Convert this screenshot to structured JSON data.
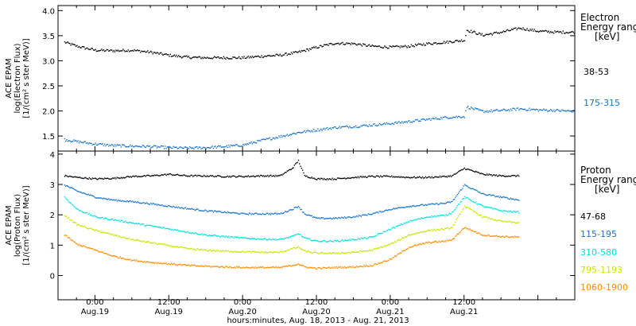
{
  "chart_data": [
    {
      "type": "scatter",
      "panel": "electron",
      "ylabel": [
        "ACE EPAM",
        "log(Electron Flux)",
        "[1/(cm² s ster MeV)]"
      ],
      "ylim": [
        1.2,
        4.1
      ],
      "yticks": [
        1.5,
        2.0,
        2.5,
        3.0,
        3.5,
        4.0
      ],
      "ytick_labels": [
        "1.5",
        "2.0",
        "2.5",
        "3.0",
        "3.5",
        "4.0"
      ],
      "legend_title": [
        "Electron",
        "Energy ranges",
        "[keV]"
      ],
      "series": [
        {
          "name": "38-53",
          "color": "#000000",
          "x": [
            1,
            3,
            6,
            9,
            12,
            15,
            18,
            21,
            24,
            27,
            30,
            33,
            36,
            39,
            42,
            45,
            48,
            51,
            54,
            57,
            60,
            63,
            66,
            66.4,
            69,
            72,
            75,
            78,
            81,
            84
          ],
          "values": [
            3.38,
            3.3,
            3.22,
            3.21,
            3.22,
            3.18,
            3.12,
            3.08,
            3.07,
            3.07,
            3.07,
            3.1,
            3.12,
            3.18,
            3.28,
            3.36,
            3.35,
            3.3,
            3.28,
            3.3,
            3.35,
            3.38,
            3.42,
            3.62,
            3.52,
            3.58,
            3.66,
            3.6,
            3.58,
            3.58
          ]
        },
        {
          "name": "175-315",
          "color": "#1874cd",
          "x": [
            1,
            3,
            6,
            9,
            12,
            15,
            18,
            21,
            24,
            27,
            30,
            33,
            36,
            39,
            42,
            45,
            48,
            51,
            54,
            57,
            60,
            63,
            66,
            66.4,
            69,
            72,
            75,
            78,
            81,
            84
          ],
          "values": [
            1.44,
            1.4,
            1.35,
            1.32,
            1.31,
            1.3,
            1.28,
            1.27,
            1.28,
            1.3,
            1.33,
            1.42,
            1.5,
            1.58,
            1.63,
            1.68,
            1.7,
            1.73,
            1.76,
            1.8,
            1.84,
            1.88,
            1.9,
            2.09,
            2.0,
            2.02,
            2.05,
            2.03,
            2.02,
            2.0
          ]
        }
      ]
    },
    {
      "type": "scatter",
      "panel": "proton",
      "ylabel": [
        "ACE EPAM",
        "log(Proton Flux)",
        "[1/(cm² s ster MeV)]"
      ],
      "ylim": [
        -0.8,
        4.1
      ],
      "yticks": [
        0,
        1,
        2,
        3,
        4
      ],
      "ytick_labels": [
        "0",
        "1",
        "2",
        "3",
        "4"
      ],
      "legend_title": [
        "Proton",
        "Energy ranges",
        "[keV]"
      ],
      "xlabel": "hours:minutes, Aug. 18, 2013 - Aug. 21, 2013",
      "xticks": [
        {
          "x": 6,
          "line1": "0:00",
          "line2": "Aug.19"
        },
        {
          "x": 18,
          "line1": "12:00",
          "line2": "Aug.19"
        },
        {
          "x": 30,
          "line1": "0:00",
          "line2": "Aug.20"
        },
        {
          "x": 42,
          "line1": "12:00",
          "line2": "Aug.20"
        },
        {
          "x": 54,
          "line1": "0:00",
          "line2": "Aug.21"
        },
        {
          "x": 66,
          "line1": "12:00",
          "line2": "Aug.21"
        }
      ],
      "xlim": [
        0,
        84
      ],
      "series": [
        {
          "name": "47-68",
          "color": "#000000",
          "x": [
            1,
            3,
            6,
            9,
            12,
            15,
            18,
            21,
            24,
            27,
            30,
            33,
            36,
            38,
            39,
            40,
            42,
            45,
            48,
            51,
            54,
            57,
            60,
            63,
            64,
            66,
            69,
            72,
            75
          ],
          "values": [
            3.3,
            3.25,
            3.2,
            3.22,
            3.28,
            3.3,
            3.35,
            3.3,
            3.3,
            3.28,
            3.28,
            3.3,
            3.3,
            3.55,
            3.8,
            3.3,
            3.2,
            3.2,
            3.25,
            3.28,
            3.28,
            3.25,
            3.25,
            3.28,
            3.3,
            3.55,
            3.35,
            3.3,
            3.3
          ]
        },
        {
          "name": "115-195",
          "color": "#1874cd",
          "x": [
            1,
            3,
            6,
            9,
            12,
            15,
            18,
            21,
            24,
            27,
            30,
            33,
            36,
            38,
            39,
            40,
            42,
            45,
            48,
            51,
            54,
            57,
            60,
            63,
            64,
            66,
            69,
            72,
            75
          ],
          "values": [
            3.0,
            2.8,
            2.6,
            2.5,
            2.45,
            2.38,
            2.3,
            2.22,
            2.15,
            2.1,
            2.05,
            2.05,
            2.05,
            2.2,
            2.3,
            2.05,
            1.9,
            1.9,
            1.95,
            2.05,
            2.2,
            2.3,
            2.35,
            2.4,
            2.45,
            3.0,
            2.7,
            2.6,
            2.5
          ]
        },
        {
          "name": "310-580",
          "color": "#00e0e0",
          "x": [
            1,
            3,
            6,
            9,
            12,
            15,
            18,
            21,
            24,
            27,
            30,
            33,
            36,
            38,
            39,
            40,
            42,
            45,
            48,
            51,
            54,
            57,
            60,
            63,
            64,
            66,
            69,
            72,
            75
          ],
          "values": [
            2.6,
            2.2,
            1.95,
            1.85,
            1.75,
            1.65,
            1.55,
            1.45,
            1.35,
            1.3,
            1.25,
            1.22,
            1.2,
            1.3,
            1.4,
            1.25,
            1.15,
            1.15,
            1.2,
            1.28,
            1.55,
            1.8,
            1.95,
            2.0,
            2.1,
            2.6,
            2.3,
            2.15,
            2.1
          ]
        },
        {
          "name": "795-1193",
          "color": "#c8e600",
          "x": [
            1,
            3,
            6,
            9,
            12,
            15,
            18,
            21,
            24,
            27,
            30,
            33,
            36,
            38,
            39,
            40,
            42,
            45,
            48,
            51,
            54,
            57,
            60,
            63,
            64,
            66,
            69,
            72,
            75
          ],
          "values": [
            2.0,
            1.7,
            1.5,
            1.35,
            1.2,
            1.1,
            1.0,
            0.9,
            0.85,
            0.82,
            0.8,
            0.78,
            0.78,
            0.9,
            0.95,
            0.82,
            0.75,
            0.75,
            0.78,
            0.85,
            1.05,
            1.35,
            1.5,
            1.55,
            1.6,
            2.3,
            1.95,
            1.8,
            1.75
          ]
        },
        {
          "name": "1060-1900",
          "color": "#ff8c00",
          "x": [
            1,
            3,
            6,
            9,
            12,
            15,
            18,
            21,
            24,
            27,
            30,
            33,
            36,
            38,
            39,
            40,
            42,
            45,
            48,
            51,
            54,
            57,
            60,
            63,
            64,
            66,
            69,
            72,
            75
          ],
          "values": [
            1.35,
            1.05,
            0.85,
            0.65,
            0.52,
            0.45,
            0.4,
            0.35,
            0.32,
            0.3,
            0.28,
            0.28,
            0.28,
            0.35,
            0.4,
            0.3,
            0.25,
            0.28,
            0.3,
            0.35,
            0.55,
            0.95,
            1.1,
            1.15,
            1.2,
            1.6,
            1.35,
            1.3,
            1.28
          ]
        }
      ]
    }
  ]
}
